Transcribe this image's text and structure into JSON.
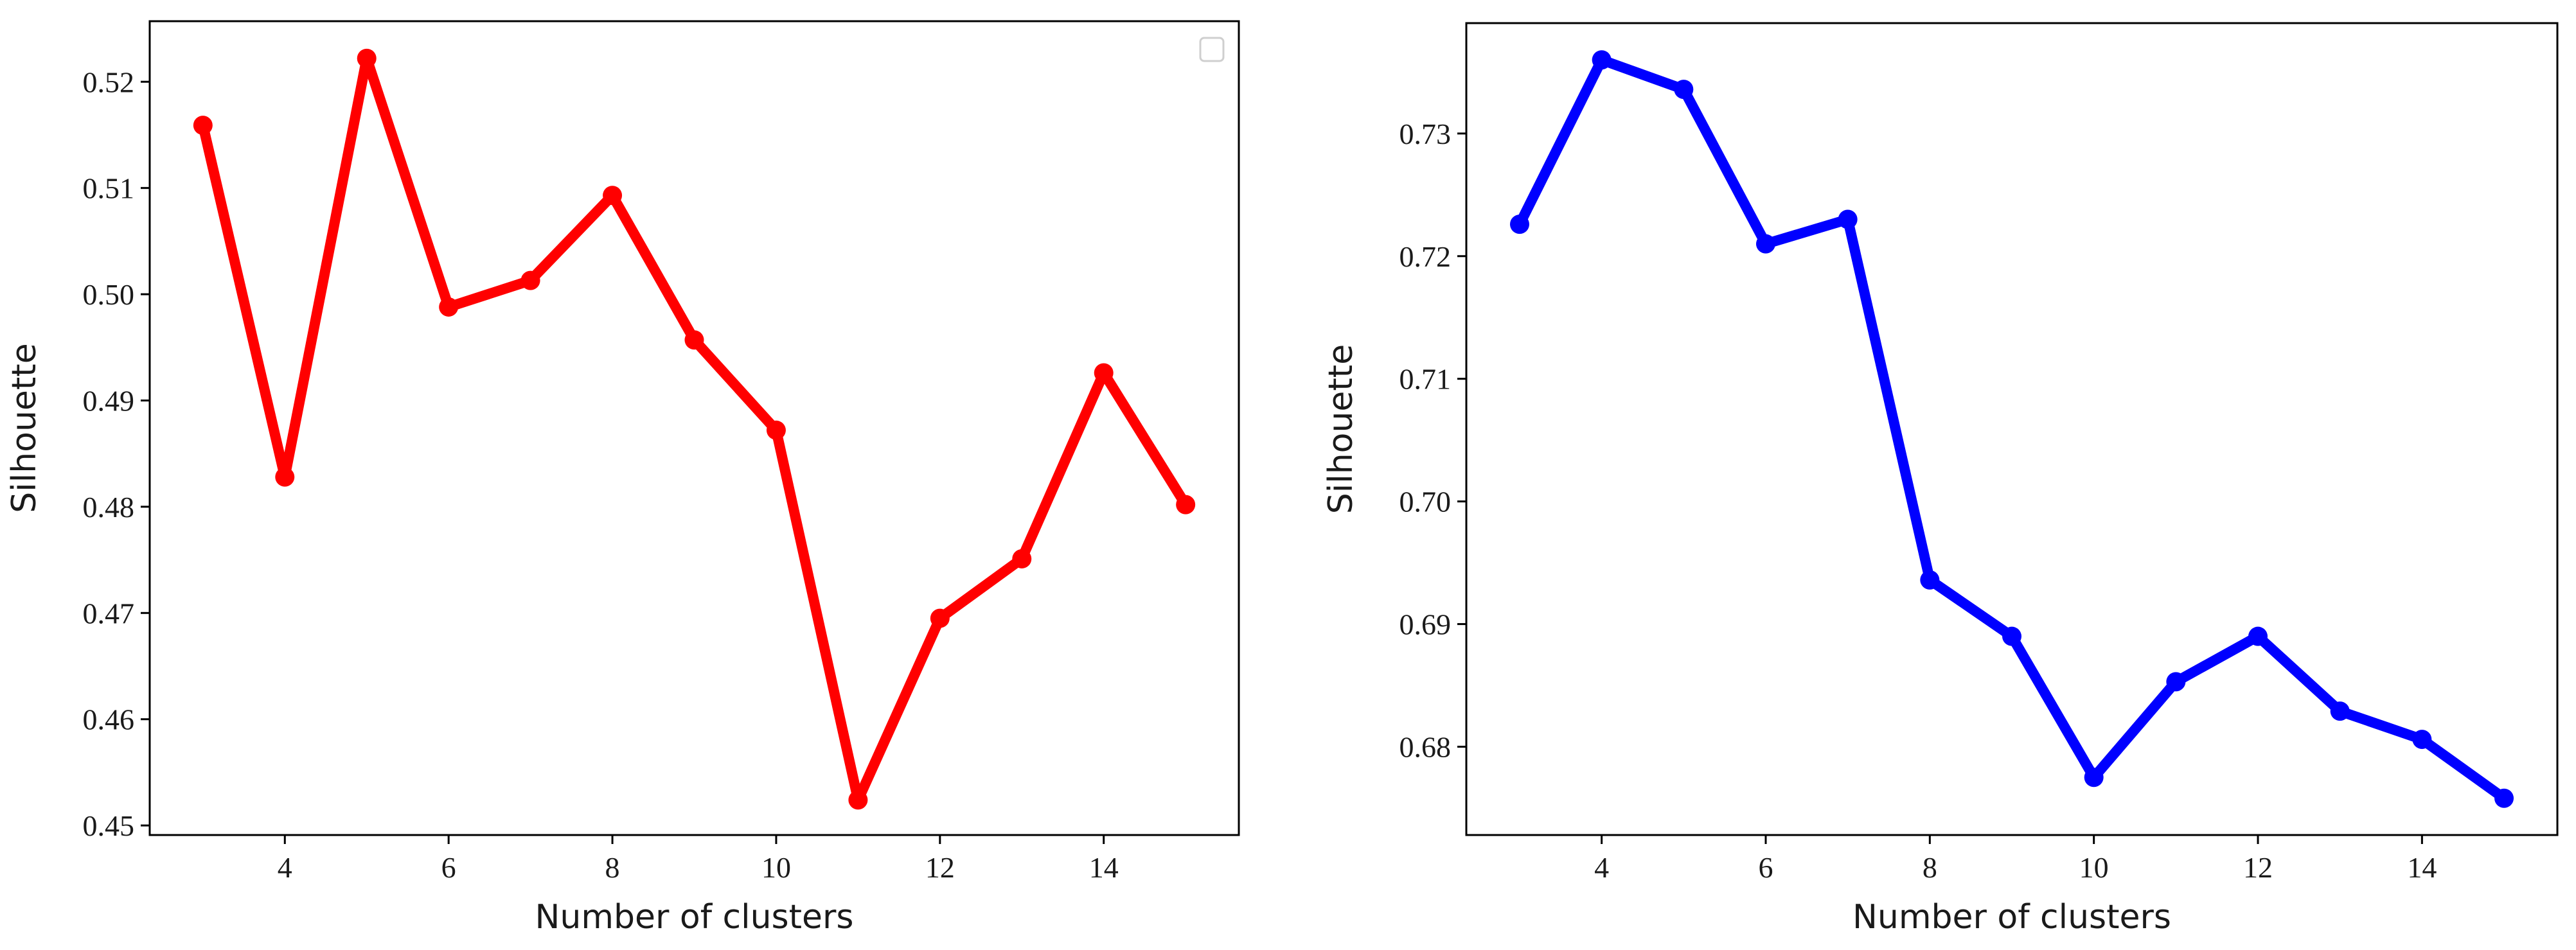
{
  "chart_data": [
    {
      "type": "line",
      "title": "",
      "xlabel": "Number of clusters",
      "ylabel": "Silhouette",
      "x": [
        3,
        4,
        5,
        6,
        7,
        8,
        9,
        10,
        11,
        12,
        13,
        14,
        15
      ],
      "series": [
        {
          "color": "#ff0000",
          "marker": "circle",
          "values": [
            0.5159,
            0.4828,
            0.5222,
            0.4988,
            0.5013,
            0.5093,
            0.4957,
            0.4872,
            0.4524,
            0.4695,
            0.4751,
            0.4926,
            0.4802
          ]
        }
      ],
      "xlim": [
        2.35,
        15.65
      ],
      "ylim": [
        0.4491,
        0.5257
      ],
      "xticks": [
        4,
        6,
        8,
        10,
        12,
        14
      ],
      "xtick_labels": [
        "4",
        "6",
        "8",
        "10",
        "12",
        "14"
      ],
      "yticks": [
        0.45,
        0.46,
        0.47,
        0.48,
        0.49,
        0.5,
        0.51,
        0.52
      ],
      "ytick_labels": [
        "0.45",
        "0.46",
        "0.47",
        "0.48",
        "0.49",
        "0.50",
        "0.51",
        "0.52"
      ],
      "grid": false,
      "legend": {
        "placement": "top-right",
        "entries": []
      }
    },
    {
      "type": "line",
      "title": "",
      "xlabel": "Number of clusters",
      "ylabel": "Silhouette",
      "x": [
        3,
        4,
        5,
        6,
        7,
        8,
        9,
        10,
        11,
        12,
        13,
        14,
        15
      ],
      "series": [
        {
          "color": "#0000ff",
          "marker": "circle",
          "values": [
            0.7226,
            0.736,
            0.7336,
            0.721,
            0.723,
            0.6936,
            0.689,
            0.6775,
            0.6853,
            0.689,
            0.6829,
            0.6806,
            0.6758
          ]
        }
      ],
      "xlim": [
        2.35,
        15.65
      ],
      "ylim": [
        0.6728,
        0.739
      ],
      "xticks": [
        4,
        6,
        8,
        10,
        12,
        14
      ],
      "xtick_labels": [
        "4",
        "6",
        "8",
        "10",
        "12",
        "14"
      ],
      "yticks": [
        0.68,
        0.69,
        0.7,
        0.71,
        0.72,
        0.73
      ],
      "ytick_labels": [
        "0.68",
        "0.69",
        "0.70",
        "0.71",
        "0.72",
        "0.73"
      ],
      "grid": false
    }
  ]
}
